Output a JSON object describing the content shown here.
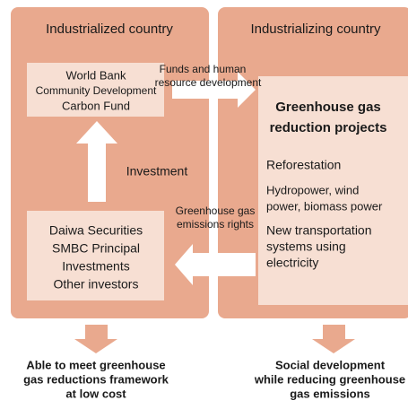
{
  "left_panel": {
    "title": "Industrialized country",
    "top_box": [
      "World Bank",
      "Community Development",
      "Carbon Fund"
    ],
    "bottom_box": [
      "Daiwa Securities",
      "SMBC Principal",
      "Investments",
      "Other investors"
    ]
  },
  "right_panel": {
    "title": "Industrializing country",
    "box_title": [
      "Greenhouse gas",
      "reduction projects"
    ],
    "items": [
      [
        "Reforestation"
      ],
      [
        "Hydropower, wind",
        "power, biomass power"
      ],
      [
        "New transportation",
        "systems using",
        "electricity"
      ]
    ]
  },
  "flows": {
    "funds": [
      "Funds and human",
      "resource development"
    ],
    "investment": "Investment",
    "rights": [
      "Greenhouse gas",
      "emissions rights"
    ]
  },
  "outcomes": {
    "left": [
      "Able to meet greenhouse",
      "gas reductions framework",
      "at low cost"
    ],
    "right": [
      "Social development",
      "while reducing greenhouse",
      "gas emissions"
    ]
  }
}
